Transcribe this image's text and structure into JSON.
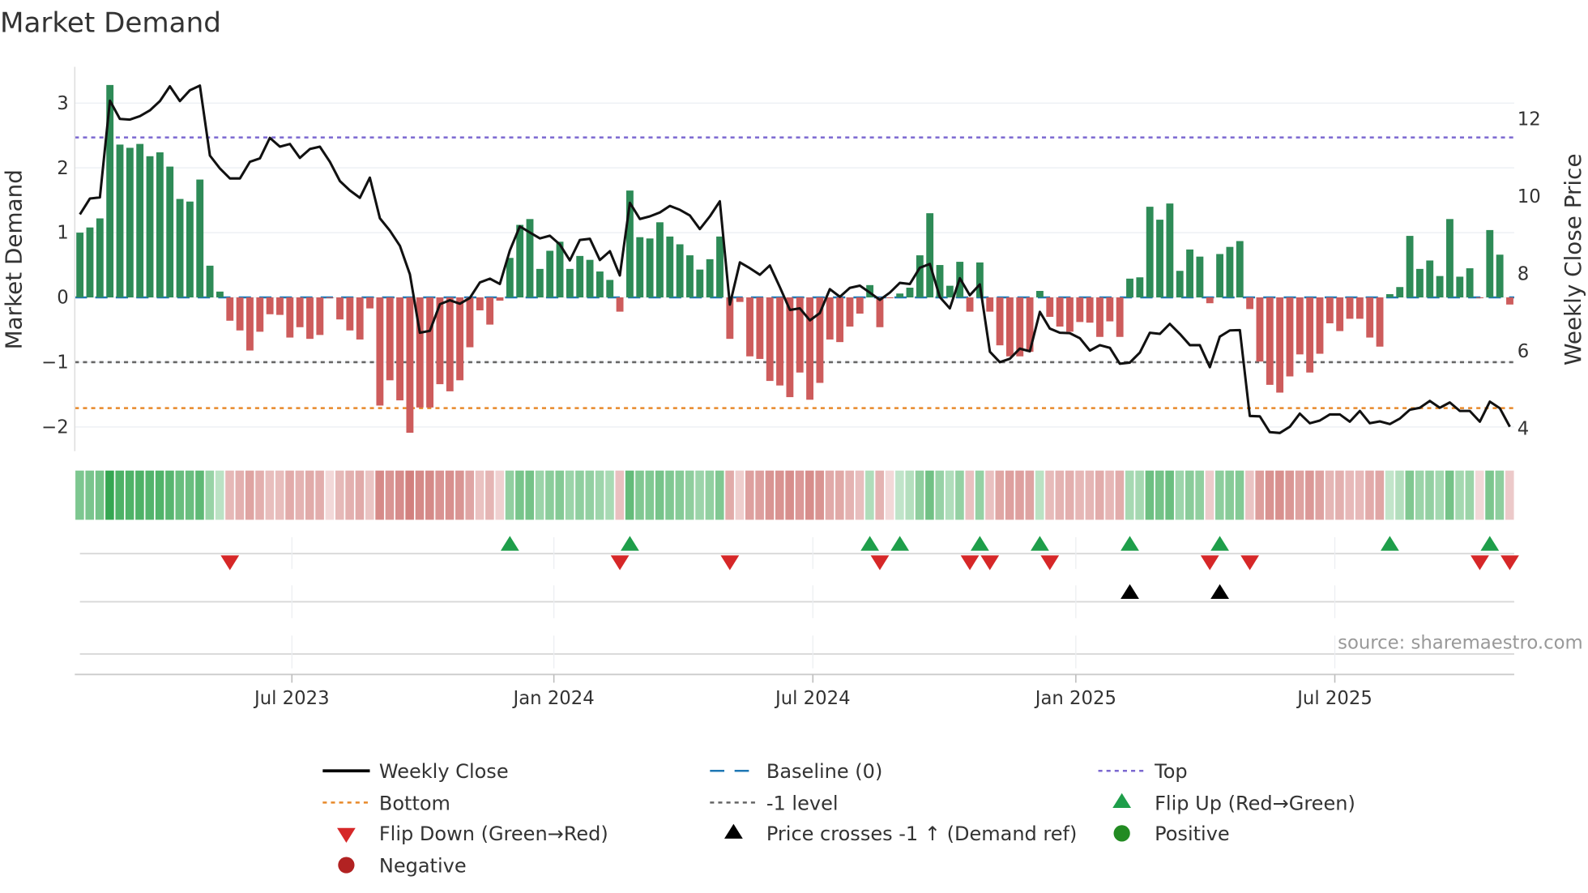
{
  "chart_data": {
    "type": "bar",
    "title": "Market Demand",
    "ylabel": "Market Demand",
    "y2label": "Weekly Close Price",
    "ylim": [
      -2.35,
      3.55
    ],
    "y2lim": [
      3.3,
      13.2
    ],
    "yticks": [
      3,
      2,
      1,
      0,
      -1,
      -2
    ],
    "yticklabels": [
      "3",
      "2",
      "1",
      "0",
      "−1",
      "−2"
    ],
    "y2ticks": [
      12,
      10,
      8,
      6,
      4
    ],
    "y2ticklabels": [
      "12",
      "10",
      "8",
      "6",
      "4"
    ],
    "xticks": [
      {
        "week": 21.2,
        "label": "Jul 2023"
      },
      {
        "week": 47.4,
        "label": "Jan 2024"
      },
      {
        "week": 73.3,
        "label": "Jul 2024"
      },
      {
        "week": 99.6,
        "label": "Jan 2025"
      },
      {
        "week": 125.5,
        "label": "Jul 2025"
      }
    ],
    "levels": {
      "top": 2.47,
      "baseline": 0,
      "minus_one": -1,
      "bottom": -1.71
    },
    "demand": [
      1.0,
      1.08,
      1.22,
      3.28,
      2.36,
      2.31,
      2.37,
      2.18,
      2.24,
      2.02,
      1.52,
      1.48,
      1.82,
      0.49,
      0.09,
      -0.36,
      -0.51,
      -0.82,
      -0.53,
      -0.26,
      -0.27,
      -0.62,
      -0.46,
      -0.64,
      -0.58,
      -0.01,
      -0.34,
      -0.51,
      -0.65,
      -0.17,
      -1.67,
      -1.28,
      -1.59,
      -2.09,
      -1.7,
      -1.7,
      -1.34,
      -1.45,
      -1.28,
      -0.77,
      -0.2,
      -0.42,
      -0.05,
      0.61,
      1.12,
      1.21,
      0.44,
      0.72,
      0.86,
      0.44,
      0.64,
      0.58,
      0.4,
      0.27,
      -0.22,
      1.65,
      0.93,
      0.91,
      1.16,
      0.94,
      0.82,
      0.65,
      0.43,
      0.59,
      0.94,
      -0.64,
      -0.07,
      -0.91,
      -0.95,
      -1.29,
      -1.36,
      -1.54,
      -1.16,
      -1.58,
      -1.32,
      -0.65,
      -0.69,
      -0.45,
      -0.25,
      0.19,
      -0.46,
      -0.01,
      0.06,
      0.15,
      0.65,
      1.3,
      0.5,
      0.18,
      0.55,
      -0.22,
      0.54,
      -0.22,
      -0.74,
      -0.91,
      -0.91,
      -0.84,
      0.1,
      -0.3,
      -0.45,
      -0.53,
      -0.38,
      -0.39,
      -0.61,
      -0.37,
      -0.61,
      0.29,
      0.31,
      1.4,
      1.2,
      1.45,
      0.41,
      0.74,
      0.63,
      -0.09,
      0.67,
      0.78,
      0.87,
      -0.18,
      -0.99,
      -1.35,
      -1.47,
      -1.22,
      -0.88,
      -1.16,
      -0.87,
      -0.4,
      -0.52,
      -0.33,
      -0.33,
      -0.62,
      -0.76,
      0.05,
      0.16,
      0.95,
      0.44,
      0.57,
      0.33,
      1.21,
      0.32,
      0.45,
      -0.01,
      1.04,
      0.66,
      -0.11
    ],
    "weekly_close": [
      9.51,
      9.92,
      9.95,
      12.45,
      11.98,
      11.96,
      12.05,
      12.2,
      12.44,
      12.82,
      12.44,
      12.72,
      12.84,
      11.03,
      10.7,
      10.44,
      10.44,
      10.87,
      10.96,
      11.49,
      11.26,
      11.33,
      10.97,
      11.2,
      11.26,
      10.87,
      10.37,
      10.13,
      9.94,
      10.46,
      9.41,
      9.09,
      8.7,
      7.96,
      6.45,
      6.5,
      7.19,
      7.29,
      7.2,
      7.35,
      7.75,
      7.85,
      7.71,
      8.58,
      9.2,
      9.04,
      8.89,
      8.96,
      8.73,
      8.32,
      8.85,
      8.88,
      8.33,
      8.56,
      7.93,
      9.81,
      9.39,
      9.46,
      9.56,
      9.73,
      9.63,
      9.48,
      9.13,
      9.46,
      9.85,
      7.18,
      8.27,
      8.12,
      7.95,
      8.19,
      7.63,
      7.04,
      7.08,
      6.77,
      6.96,
      7.58,
      7.38,
      7.61,
      7.67,
      7.49,
      7.3,
      7.49,
      7.74,
      7.71,
      8.13,
      8.23,
      7.37,
      7.08,
      7.86,
      7.42,
      7.7,
      5.96,
      5.69,
      5.78,
      6.04,
      5.97,
      6.99,
      6.56,
      6.45,
      6.44,
      6.31,
      5.99,
      6.13,
      6.06,
      5.65,
      5.68,
      5.94,
      6.45,
      6.42,
      6.68,
      6.42,
      6.13,
      6.13,
      5.56,
      6.35,
      6.51,
      6.52,
      4.3,
      4.29,
      3.88,
      3.86,
      4.02,
      4.36,
      4.11,
      4.18,
      4.34,
      4.34,
      4.15,
      4.43,
      4.11,
      4.16,
      4.09,
      4.23,
      4.46,
      4.51,
      4.69,
      4.51,
      4.65,
      4.43,
      4.43,
      4.15,
      4.67,
      4.5,
      4.02
    ],
    "flip_up_weeks": [
      43,
      55,
      79,
      82,
      90,
      96,
      105,
      114,
      131,
      141
    ],
    "flip_down_weeks": [
      15,
      54,
      65,
      80,
      89,
      91,
      97,
      113,
      117,
      140,
      143
    ],
    "price_cross_weeks": [
      105,
      114
    ],
    "colors": {
      "positive_bar": "#2e8b57",
      "negative_bar": "#cd5c5c",
      "line": "#111111",
      "baseline": "#1f77b4",
      "top": "#7b68d0",
      "bottom": "#e8892a",
      "minus_one": "#666666",
      "flip_up": "#1e9e4a",
      "flip_down": "#d62728",
      "price_cross": "#000000",
      "positive_dot": "#228b22",
      "negative_dot": "#b22222"
    },
    "legend": [
      {
        "key": "weekly_close",
        "label": "Weekly Close",
        "symbol": "line"
      },
      {
        "key": "baseline",
        "label": "Baseline (0)",
        "symbol": "dash"
      },
      {
        "key": "top",
        "label": "Top",
        "symbol": "dot"
      },
      {
        "key": "bottom",
        "label": "Bottom",
        "symbol": "dot"
      },
      {
        "key": "minus_one",
        "label": "-1 level",
        "symbol": "dot"
      },
      {
        "key": "flip_up",
        "label": "Flip Up (Red→Green)",
        "symbol": "tri-up"
      },
      {
        "key": "flip_down",
        "label": "Flip Down (Green→Red)",
        "symbol": "tri-down"
      },
      {
        "key": "price_cross",
        "label": "Price crosses -1 ↑ (Demand ref)",
        "symbol": "tri-up"
      },
      {
        "key": "positive_dot",
        "label": "Positive",
        "symbol": "circle"
      },
      {
        "key": "negative_dot",
        "label": "Negative",
        "symbol": "circle"
      }
    ],
    "legend_placement": "bottom",
    "source": "source: sharemaestro.com"
  }
}
